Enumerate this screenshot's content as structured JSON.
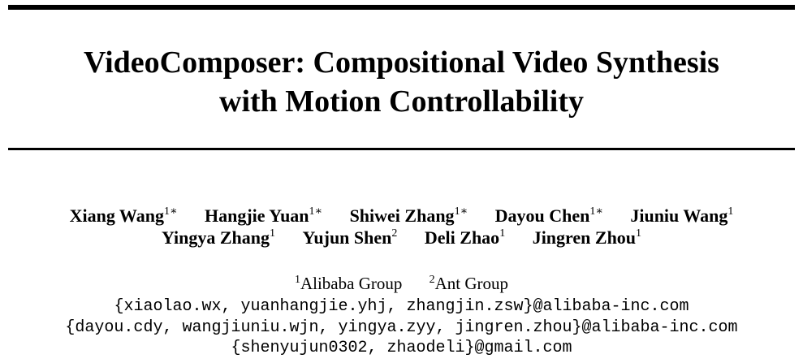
{
  "title": {
    "line1": "VideoComposer: Compositional Video Synthesis",
    "line2": "with Motion Controllability"
  },
  "authors": {
    "row1": [
      {
        "name": "Xiang Wang",
        "mark": "1∗"
      },
      {
        "name": "Hangjie Yuan",
        "mark": "1∗"
      },
      {
        "name": "Shiwei Zhang",
        "mark": "1∗"
      },
      {
        "name": "Dayou Chen",
        "mark": "1∗"
      },
      {
        "name": "Jiuniu Wang",
        "mark": "1"
      }
    ],
    "row2": [
      {
        "name": "Yingya Zhang",
        "mark": "1"
      },
      {
        "name": "Yujun Shen",
        "mark": "2"
      },
      {
        "name": "Deli Zhao",
        "mark": "1"
      },
      {
        "name": "Jingren Zhou",
        "mark": "1"
      }
    ]
  },
  "affiliations": [
    {
      "mark": "1",
      "name": "Alibaba Group"
    },
    {
      "mark": "2",
      "name": "Ant Group"
    }
  ],
  "emails": [
    "{xiaolao.wx, yuanhangjie.yhj, zhangjin.zsw}@alibaba-inc.com",
    "{dayou.cdy, wangjiuniu.wjn, yingya.zyy, jingren.zhou}@alibaba-inc.com",
    "{shenyujun0302, zhaodeli}@gmail.com"
  ]
}
